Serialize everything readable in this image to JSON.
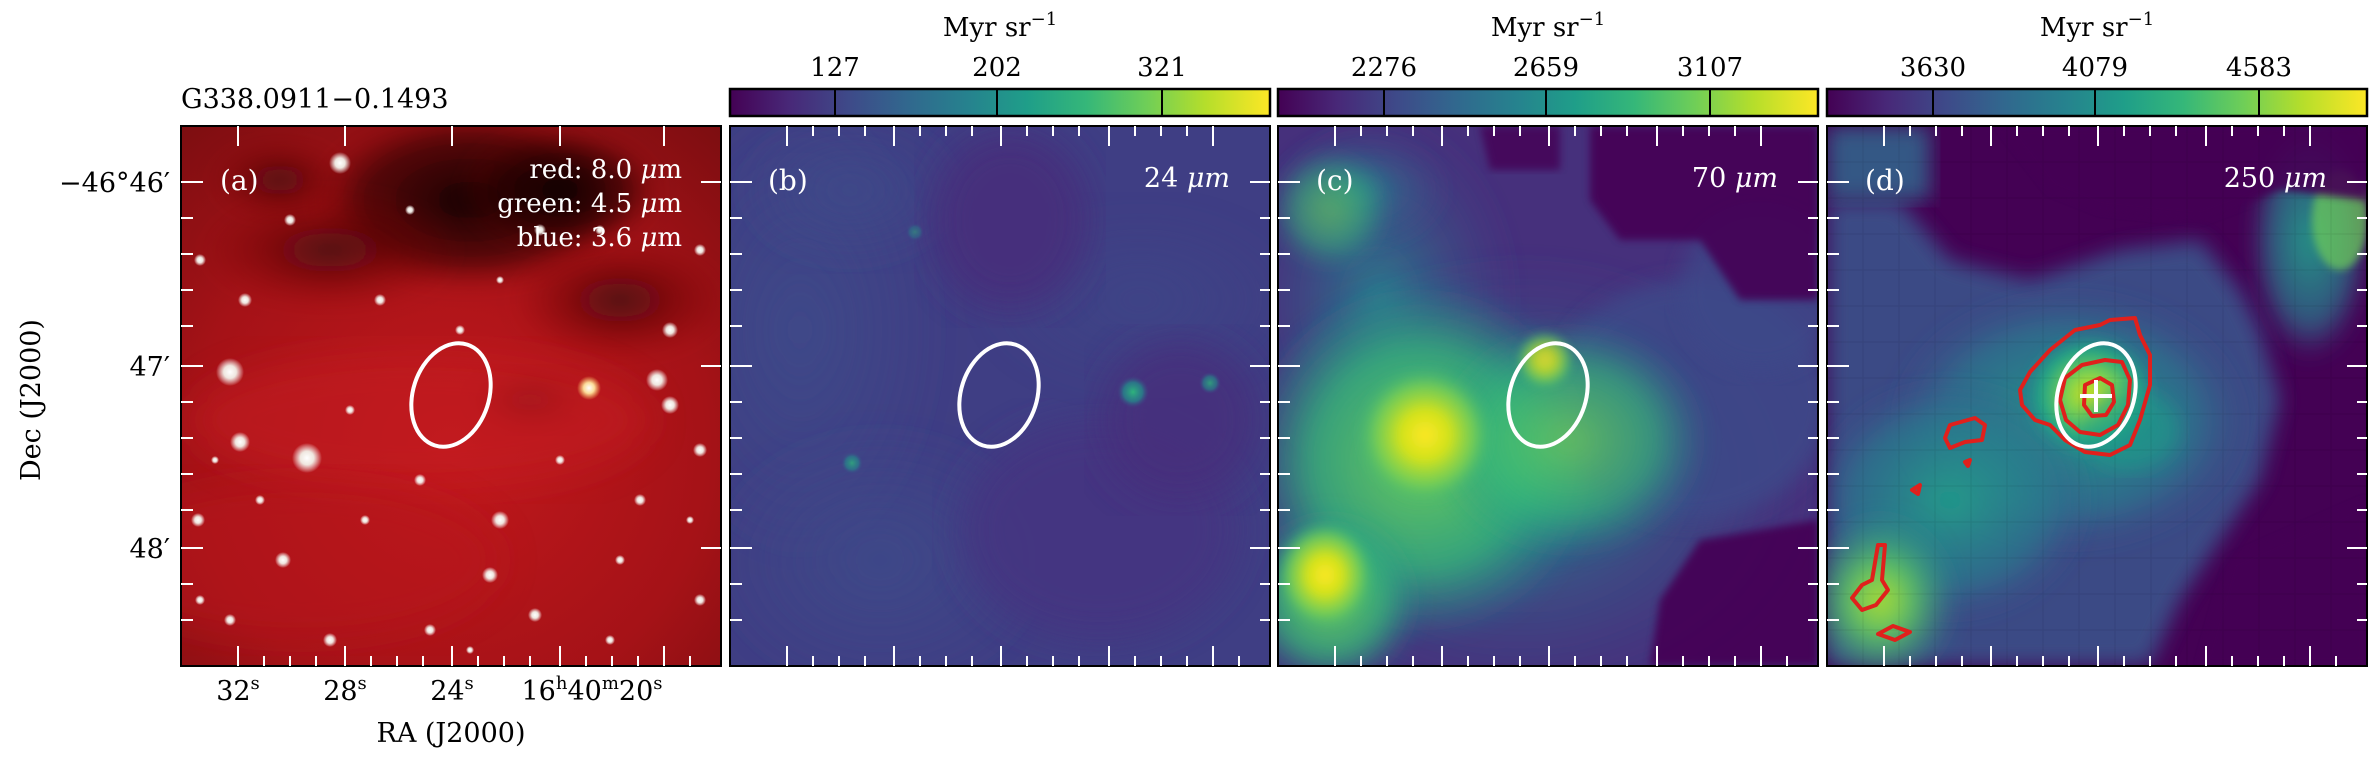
{
  "figure": {
    "source_name": "G338.0911−0.1493",
    "axes": {
      "x_title": "RA (J2000)",
      "y_title": "Dec (J2000)",
      "x_ticks": [
        {
          "label": "32",
          "sup": "s",
          "prefix": ""
        },
        {
          "label": "28",
          "sup": "s",
          "prefix": ""
        },
        {
          "label": "24",
          "sup": "s",
          "prefix": ""
        },
        {
          "label": "16",
          "sup": "h",
          "prefix": "40",
          "sup2": "m",
          "suffix": "20",
          "sup3": "s"
        }
      ],
      "y_ticks": [
        {
          "label": "−46°46′"
        },
        {
          "label": "47′"
        },
        {
          "label": "48′"
        }
      ]
    },
    "panels": [
      {
        "id": "a",
        "label": "(a)",
        "wavelength": "",
        "legend_lines": [
          {
            "prefix": "red: 8.0 ",
            "mu": "μ",
            "unit": "m"
          },
          {
            "prefix": "green: 4.5 ",
            "mu": "μ",
            "unit": "m"
          },
          {
            "prefix": "blue: 3.6 ",
            "mu": "μ",
            "unit": "m"
          }
        ],
        "ellipse_color": "#ffffff",
        "colorbar": null
      },
      {
        "id": "b",
        "label": "(b)",
        "wavelength": "24",
        "wavelength_unit": "μm",
        "ellipse_color": "#ffffff",
        "colorbar": {
          "unit": "Myr sr",
          "unit_sup": "−1",
          "ticks": [
            "127",
            "202",
            "321"
          ]
        }
      },
      {
        "id": "c",
        "label": "(c)",
        "wavelength": "70",
        "wavelength_unit": "μm",
        "ellipse_color": "#ffffff",
        "colorbar": {
          "unit": "Myr sr",
          "unit_sup": "−1",
          "ticks": [
            "2276",
            "2659",
            "3107"
          ]
        }
      },
      {
        "id": "d",
        "label": "(d)",
        "wavelength": "250",
        "wavelength_unit": "μm",
        "ellipse_color": "#ffffff",
        "contour_color": "#e0201c",
        "colorbar": {
          "unit": "Myr sr",
          "unit_sup": "−1",
          "ticks": [
            "3630",
            "4079",
            "4583"
          ]
        }
      }
    ],
    "colors": {
      "viridis": [
        "#440154",
        "#482878",
        "#3e4a89",
        "#31688e",
        "#26828e",
        "#1f9e89",
        "#35b779",
        "#6ece58",
        "#b5de2b",
        "#fde725"
      ],
      "irac_red": "#b21418",
      "ellipse": "#ffffff",
      "contour": "#e0201c"
    }
  }
}
